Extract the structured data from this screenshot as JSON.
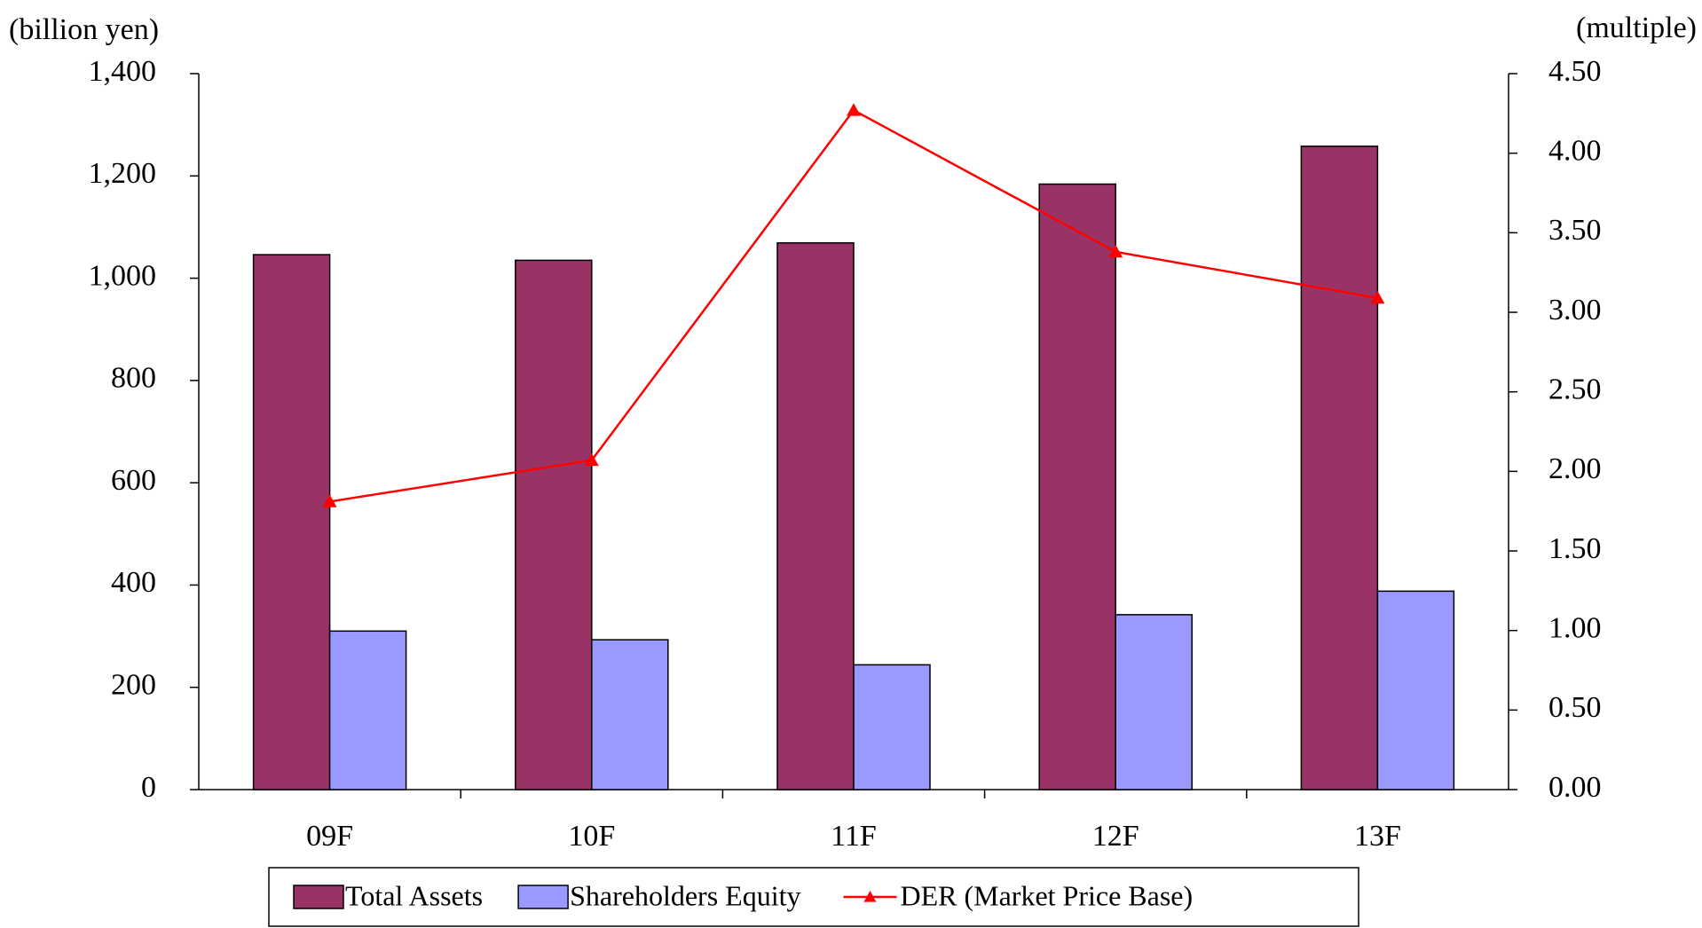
{
  "chart_data": {
    "type": "bar",
    "y_label": "(billion yen)",
    "y2_label": "(multiple)",
    "categories": [
      "09F",
      "10F",
      "11F",
      "12F",
      "13F"
    ],
    "series": [
      {
        "name": "Total Assets",
        "type": "bar",
        "color": "#993366",
        "values": [
          1046,
          1035,
          1069,
          1184,
          1258
        ]
      },
      {
        "name": "Shareholders Equity",
        "type": "bar",
        "color": "#9999ff",
        "values": [
          310,
          293,
          244,
          342,
          388
        ]
      },
      {
        "name": "DER (Market Price Base)",
        "type": "line",
        "axis": "y2",
        "color": "#ff0000",
        "values": [
          1.81,
          2.07,
          4.27,
          3.38,
          3.09
        ]
      }
    ],
    "ylim": [
      0,
      1400
    ],
    "yticks": [
      0,
      200,
      400,
      600,
      800,
      {
        "value": 1000,
        "label": "1,000"
      },
      {
        "value": 1200,
        "label": "1,200"
      },
      {
        "value": 1400,
        "label": "1,400"
      }
    ],
    "y2lim": [
      0,
      4.5
    ],
    "y2ticks": [
      {
        "value": 0,
        "label": "0.00"
      },
      {
        "value": 0.5,
        "label": "0.50"
      },
      {
        "value": 1,
        "label": "1.00"
      },
      {
        "value": 1.5,
        "label": "1.50"
      },
      {
        "value": 2,
        "label": "2.00"
      },
      {
        "value": 2.5,
        "label": "2.50"
      },
      {
        "value": 3,
        "label": "3.00"
      },
      {
        "value": 3.5,
        "label": "3.50"
      },
      {
        "value": 4,
        "label": "4.00"
      },
      {
        "value": 4.5,
        "label": "4.50"
      }
    ],
    "grid": false,
    "legend": "bottom"
  }
}
